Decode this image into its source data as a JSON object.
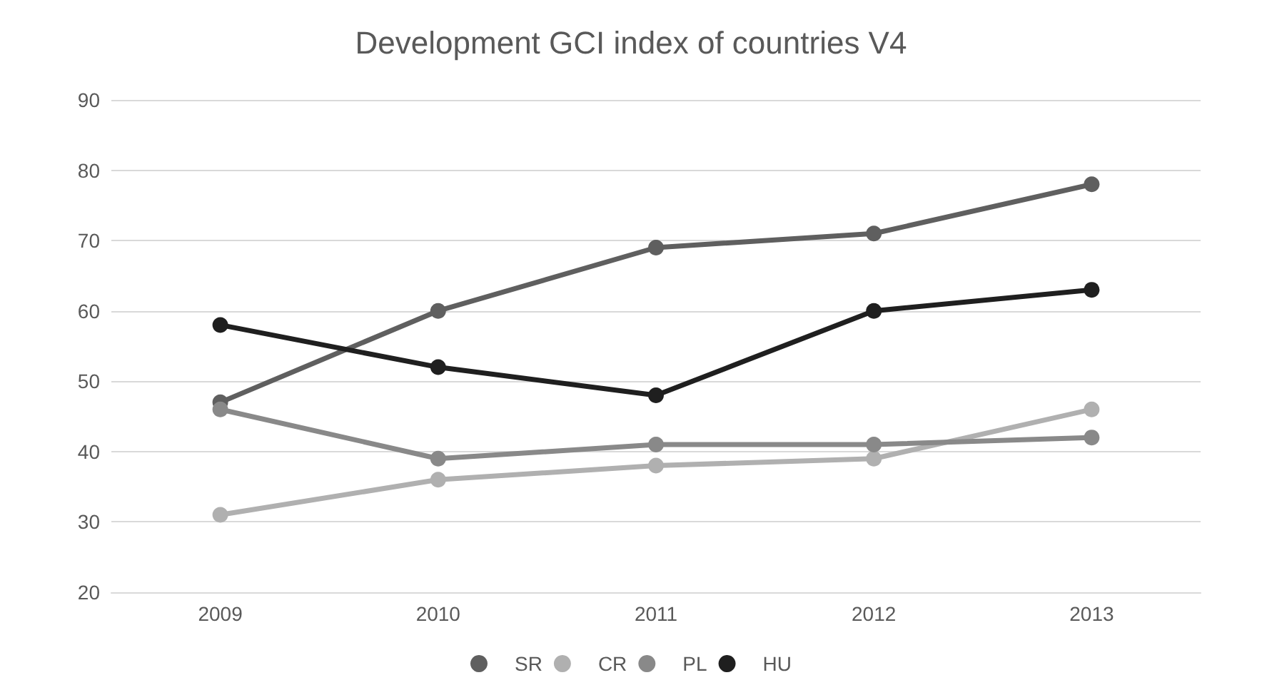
{
  "chart_data": {
    "type": "line",
    "title": "Development GCI index of countries V4",
    "categories": [
      "2009",
      "2010",
      "2011",
      "2012",
      "2013"
    ],
    "series": [
      {
        "name": "SR",
        "color": "#5f5f5f",
        "values": [
          47,
          60,
          69,
          71,
          78
        ]
      },
      {
        "name": "CR",
        "color": "#b0b0b0",
        "values": [
          31,
          36,
          38,
          39,
          46
        ]
      },
      {
        "name": "PL",
        "color": "#898989",
        "values": [
          46,
          39,
          41,
          41,
          42
        ]
      },
      {
        "name": "HU",
        "color": "#1f1f1f",
        "values": [
          58,
          52,
          48,
          60,
          63
        ]
      }
    ],
    "ylim": [
      20,
      90
    ],
    "yticks": [
      20,
      30,
      40,
      50,
      60,
      70,
      80,
      90
    ],
    "grid": "y",
    "legend": "bottom",
    "marker": "circle",
    "line_style": "solid"
  }
}
